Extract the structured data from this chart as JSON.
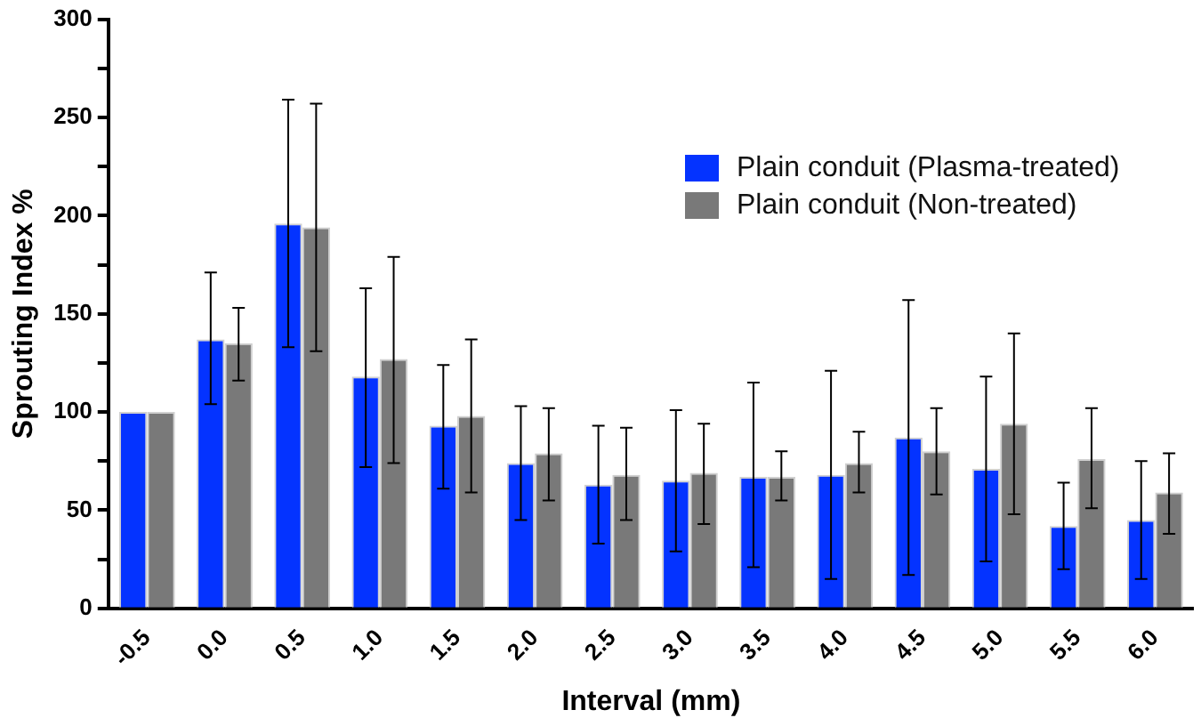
{
  "chart_data": {
    "type": "bar",
    "xlabel": "Interval (mm)",
    "ylabel": "Sprouting Index %",
    "categories": [
      "-0.5",
      "0.0",
      "0.5",
      "1.0",
      "1.5",
      "2.0",
      "2.5",
      "3.0",
      "3.5",
      "4.0",
      "4.5",
      "5.0",
      "5.5",
      "6.0"
    ],
    "series": [
      {
        "name": "Plain conduit (Plasma-treated)",
        "color": "#0433ff",
        "values": [
          100,
          137,
          196,
          118,
          93,
          74,
          63,
          65,
          67,
          68,
          87,
          71,
          42,
          45
        ],
        "errors": [
          null,
          [
            104,
            171
          ],
          [
            133,
            259
          ],
          [
            72,
            163
          ],
          [
            61,
            124
          ],
          [
            45,
            103
          ],
          [
            33,
            93
          ],
          [
            29,
            101
          ],
          [
            21,
            115
          ],
          [
            15,
            121
          ],
          [
            17,
            157
          ],
          [
            24,
            118
          ],
          [
            20,
            64
          ],
          [
            15,
            75
          ]
        ]
      },
      {
        "name": "Plain conduit (Non-treated)",
        "color": "#797979",
        "values": [
          100,
          135,
          194,
          127,
          98,
          79,
          68,
          69,
          67,
          74,
          80,
          94,
          76,
          59
        ],
        "errors": [
          null,
          [
            116,
            153
          ],
          [
            131,
            257
          ],
          [
            74,
            179
          ],
          [
            59,
            137
          ],
          [
            55,
            102
          ],
          [
            45,
            92
          ],
          [
            43,
            94
          ],
          [
            55,
            80
          ],
          [
            59,
            90
          ],
          [
            58,
            102
          ],
          [
            48,
            140
          ],
          [
            51,
            102
          ],
          [
            38,
            79
          ]
        ]
      }
    ],
    "ylim": [
      0,
      300
    ],
    "yticks": [
      0,
      {
        "value": 25,
        "label": null
      },
      50,
      {
        "value": 75,
        "label": null
      },
      100,
      {
        "value": 125,
        "label": null
      },
      150,
      {
        "value": 175,
        "label": null
      },
      200,
      {
        "value": 225,
        "label": null
      },
      250,
      {
        "value": 275,
        "label": null
      },
      300
    ],
    "grid": false,
    "legend": "top right"
  }
}
